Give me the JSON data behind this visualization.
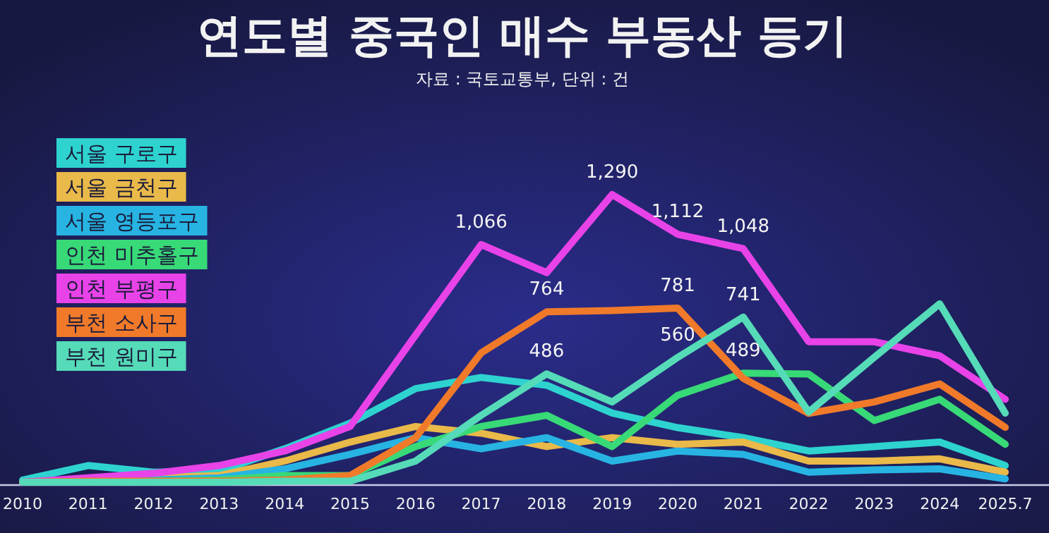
{
  "chart_data": {
    "type": "line",
    "title": "연도별 중국인 매수 부동산 등기",
    "subtitle": "자료 : 국토교통부, 단위 : 건",
    "legend": "top left",
    "categories": [
      "2010",
      "2011",
      "2012",
      "2013",
      "2014",
      "2015",
      "2016",
      "2017",
      "2018",
      "2019",
      "2020",
      "2021",
      "2022",
      "2023",
      "2024",
      "2025.7"
    ],
    "series": [
      {
        "name": "서울 구로구",
        "color": "#2ed3d0",
        "values": [
          10,
          75,
          45,
          50,
          150,
          265,
          420,
          470,
          435,
          310,
          245,
          200,
          140,
          160,
          180,
          75
        ]
      },
      {
        "name": "서울 금천구",
        "color": "#e9b949",
        "values": [
          0,
          15,
          20,
          30,
          95,
          180,
          250,
          220,
          160,
          200,
          170,
          180,
          95,
          95,
          105,
          45
        ]
      },
      {
        "name": "서울 영등포구",
        "color": "#27b4e3",
        "values": [
          0,
          5,
          10,
          20,
          60,
          125,
          200,
          150,
          200,
          95,
          140,
          125,
          45,
          55,
          60,
          15
        ]
      },
      {
        "name": "인천 미추홀구",
        "color": "#38d977",
        "values": [
          0,
          5,
          5,
          10,
          30,
          30,
          160,
          250,
          300,
          160,
          390,
          489,
          485,
          277,
          372,
          170
        ],
        "value_labels": [
          null,
          null,
          null,
          null,
          null,
          null,
          null,
          null,
          null,
          null,
          null,
          "489",
          null,
          null,
          null,
          null
        ]
      },
      {
        "name": "인천 부평구",
        "color": "#e843e8",
        "values": [
          0,
          20,
          40,
          75,
          140,
          250,
          660,
          1066,
          940,
          1290,
          1112,
          1048,
          630,
          630,
          567,
          372
        ],
        "value_labels": [
          null,
          null,
          null,
          null,
          null,
          null,
          null,
          "1,066",
          null,
          "1,290",
          "1,112",
          "1,048",
          null,
          null,
          null,
          null
        ]
      },
      {
        "name": "부천 소사구",
        "color": "#f07a2a",
        "values": [
          0,
          5,
          5,
          5,
          10,
          30,
          200,
          580,
          764,
          770,
          781,
          466,
          309,
          360,
          441,
          246
        ],
        "value_labels": [
          null,
          null,
          null,
          null,
          null,
          null,
          null,
          null,
          "764",
          null,
          "781",
          null,
          null,
          null,
          null,
          null
        ]
      },
      {
        "name": "부천 원미구",
        "color": "#55dbb8",
        "values": [
          0,
          0,
          0,
          0,
          5,
          5,
          95,
          300,
          486,
          360,
          560,
          741,
          315,
          560,
          800,
          310
        ],
        "value_labels": [
          null,
          null,
          null,
          null,
          null,
          null,
          null,
          null,
          "486",
          null,
          "560",
          "741",
          null,
          null,
          null,
          null
        ]
      }
    ]
  }
}
